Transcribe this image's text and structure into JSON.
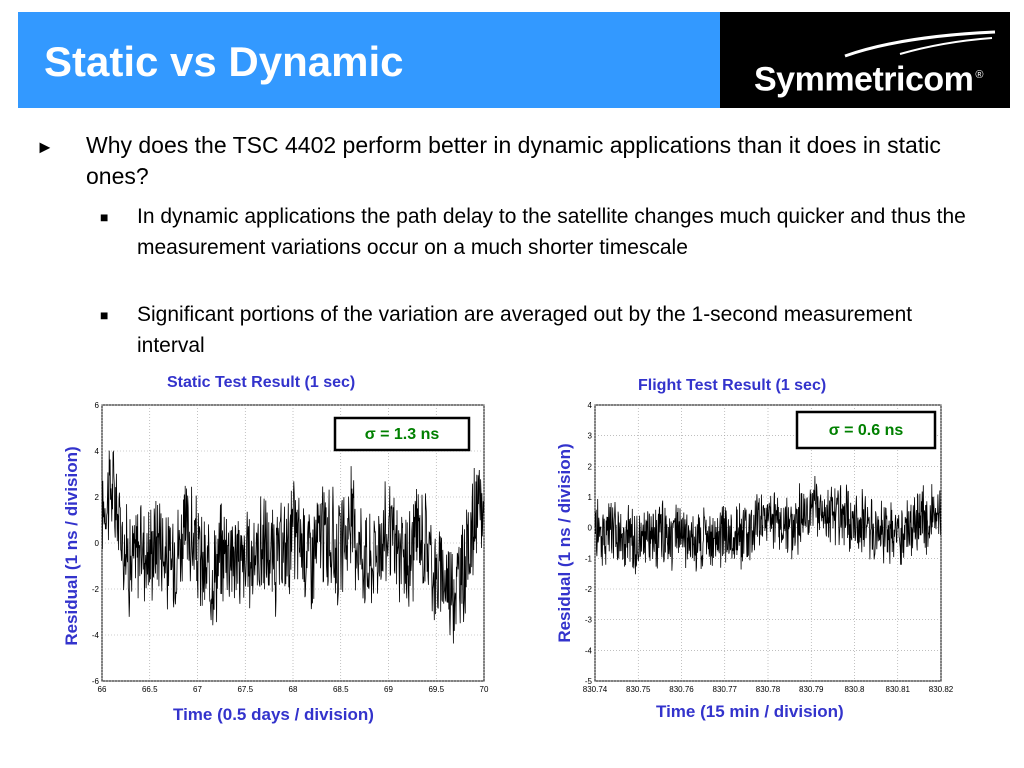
{
  "slide": {
    "title": "Static vs Dynamic",
    "logo_text": "Symmetricom",
    "logo_mark": "®"
  },
  "bullets": {
    "main": "Why does the TSC 4402 perform better in dynamic applications than it does in static ones?",
    "main_marker": "►",
    "sub_marker": "■",
    "sub": [
      "In dynamic applications the path delay to the satellite changes much quicker and thus the measurement variations occur on a much shorter timescale",
      "Significant portions of the variation are averaged out by the 1-second measurement interval"
    ]
  },
  "colors": {
    "header_bg": "#3399ff",
    "logo_bg": "#000000",
    "chart_label": "#3333cc",
    "sigma_text": "#008000"
  },
  "chart_data": [
    {
      "type": "line",
      "title": "Static Test Result (1 sec)",
      "xlabel": "Time (0.5 days / division)",
      "ylabel": "Residual (1 ns / division)",
      "annotation": "σ = 1.3 ns",
      "xlim": [
        66,
        70
      ],
      "ylim": [
        -6,
        6
      ],
      "xticks": [
        "66",
        "66.5",
        "67",
        "67.5",
        "68",
        "68.5",
        "69",
        "69.5",
        "70"
      ],
      "yticks": [
        "6",
        "4",
        "2",
        "0",
        "-2",
        "-4",
        "-6"
      ],
      "grid": true,
      "series": [
        {
          "x": [
            66,
            66.1,
            66.2,
            66.3,
            66.4,
            66.5,
            66.6,
            66.7,
            66.8,
            66.9,
            67,
            67.1,
            67.2,
            67.3,
            67.4,
            67.5,
            67.6,
            67.7,
            67.8,
            67.9,
            68,
            68.1,
            68.2,
            68.3,
            68.4,
            68.5,
            68.6,
            68.7,
            68.8,
            68.9,
            69,
            69.1,
            69.2,
            69.3,
            69.4,
            69.5,
            69.6,
            69.7,
            69.8,
            69.9,
            70
          ],
          "y": [
            1.5,
            2.5,
            0.5,
            -1,
            0,
            -0.5,
            0.5,
            -1,
            0,
            0.5,
            -0.5,
            -1.5,
            -1,
            0,
            -0.5,
            -1,
            -0.5,
            0,
            -1,
            -0.5,
            0.5,
            0,
            -0.5,
            0.5,
            0,
            -0.5,
            1,
            0,
            -1,
            0,
            0.5,
            -0.5,
            -1,
            0.5,
            0,
            -1.5,
            -1.5,
            -2,
            -1,
            1,
            1.5
          ],
          "amplitude": 1.3
        }
      ]
    },
    {
      "type": "line",
      "title": "Flight Test Result (1 sec)",
      "xlabel": "Time (15 min / division)",
      "ylabel": "Residual (1 ns / division)",
      "annotation": "σ = 0.6 ns",
      "xlim": [
        830.74,
        830.82
      ],
      "ylim": [
        -5,
        4
      ],
      "xticks": [
        "830.74",
        "830.75",
        "830.76",
        "830.77",
        "830.78",
        "830.79",
        "830.8",
        "830.81",
        "830.82"
      ],
      "yticks": [
        "4",
        "3",
        "2",
        "1",
        "0",
        "-1",
        "-2",
        "-3",
        "-4",
        "-5"
      ],
      "grid": true,
      "series": [
        {
          "x": [
            830.74,
            830.745,
            830.75,
            830.755,
            830.76,
            830.765,
            830.77,
            830.775,
            830.78,
            830.785,
            830.79,
            830.795,
            830.8,
            830.805,
            830.81,
            830.815,
            830.82
          ],
          "y": [
            0,
            -0.3,
            -0.5,
            -0.2,
            -0.3,
            -0.5,
            -0.2,
            -0.3,
            0.5,
            0,
            0.7,
            0.3,
            0.3,
            0,
            -0.3,
            0.2,
            0.3
          ],
          "amplitude": 0.6
        }
      ]
    }
  ]
}
